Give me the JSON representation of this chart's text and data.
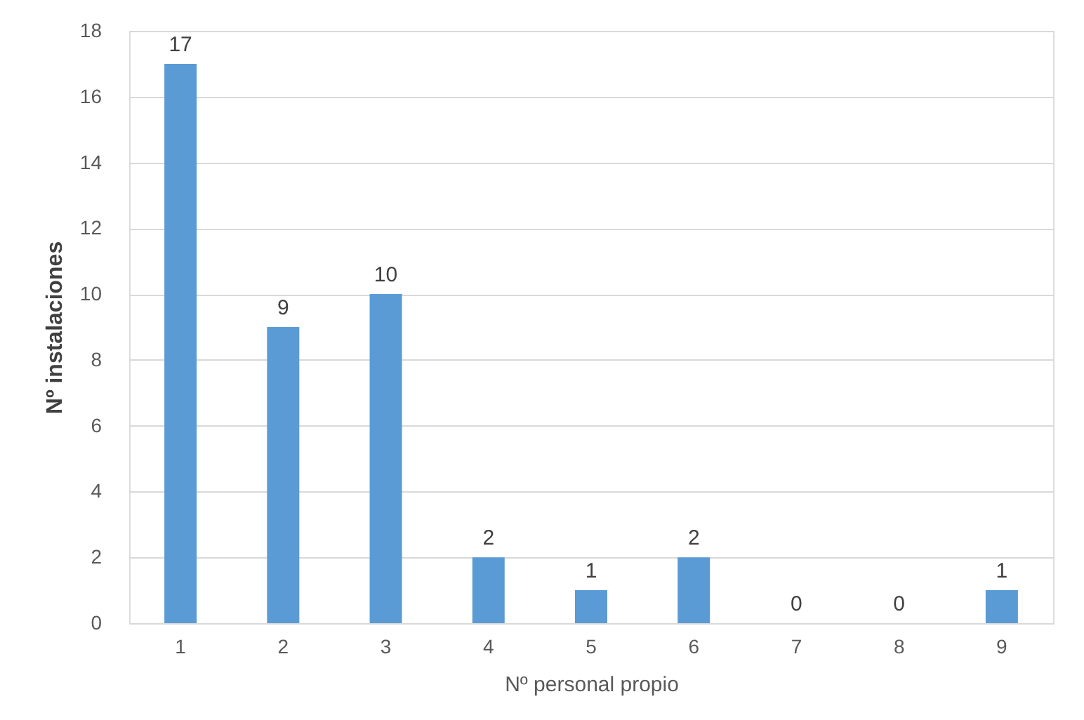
{
  "chart_data": {
    "type": "bar",
    "xlabel": "Nº personal propio",
    "ylabel": "Nº instalaciones",
    "categories": [
      "1",
      "2",
      "3",
      "4",
      "5",
      "6",
      "7",
      "8",
      "9"
    ],
    "values": [
      17,
      9,
      10,
      2,
      1,
      2,
      0,
      0,
      1
    ],
    "color": "#5b9bd5",
    "ylim": [
      0,
      18
    ],
    "yticks": [
      0,
      2,
      4,
      6,
      8,
      10,
      12,
      14,
      16,
      18
    ],
    "grid": "y",
    "data_labels": true
  }
}
